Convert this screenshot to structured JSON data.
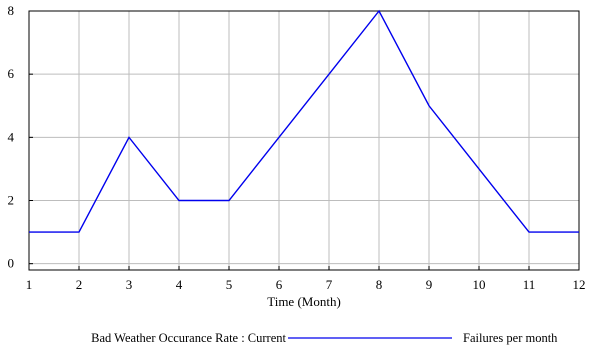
{
  "chart_data": {
    "type": "line",
    "title": "",
    "xlabel": "Time (Month)",
    "ylabel": "",
    "x_ticks": [
      1,
      2,
      3,
      4,
      5,
      6,
      7,
      8,
      9,
      10,
      11,
      12
    ],
    "y_ticks": [
      0,
      2,
      4,
      6,
      8
    ],
    "xlim": [
      1,
      12
    ],
    "ylim": [
      -0.2,
      8
    ],
    "grid": true,
    "legend_placement": "bottom",
    "series": [
      {
        "name": "Bad Weather Occurance Rate : Current",
        "unit": "Failures per month",
        "color": "#0000ee",
        "x": [
          1,
          2,
          3,
          4,
          5,
          6,
          7,
          8,
          9,
          10,
          11,
          12
        ],
        "y": [
          1,
          1,
          4,
          2,
          2,
          4,
          6,
          8,
          5,
          3,
          1,
          1
        ]
      }
    ]
  }
}
